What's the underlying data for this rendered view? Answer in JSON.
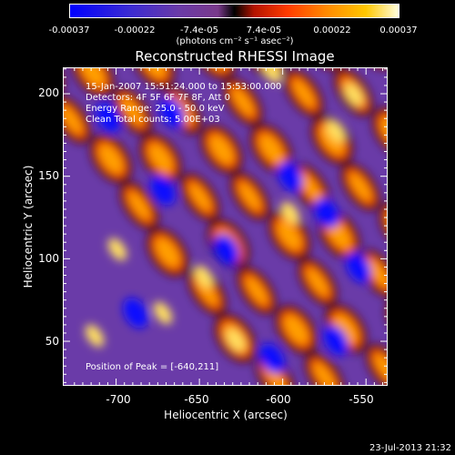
{
  "colorbar": {
    "ticks": [
      "-0.00037",
      "-0.00022",
      "-7.4e-05",
      "7.4e-05",
      "0.00022",
      "0.00037"
    ],
    "unit": "(photons cm⁻² s⁻¹ asec⁻²)",
    "min": -0.00037,
    "max": 0.00037
  },
  "title": "Reconstructed RHESSI Image",
  "info": {
    "line1": "15-Jan-2007 15:51:24.000 to 15:53:00.000",
    "line2": "Detectors: 4F 5F 6F 7F 8F, Att 0",
    "line3": "Energy Range: 25.0 - 50.0 keV",
    "line4": "Clean     Total counts: 5.00E+03"
  },
  "peak_text": "Position of Peak = [-640,211]",
  "axes": {
    "x_label": "Heliocentric X (arcsec)",
    "y_label": "Heliocentric Y (arcsec)",
    "x_ticks": [
      "-700",
      "-650",
      "-600",
      "-550"
    ],
    "y_ticks": [
      "200",
      "150",
      "100",
      "50"
    ],
    "x_range": [
      -732,
      -537
    ],
    "y_range": [
      23,
      216
    ]
  },
  "footer": "23-Jul-2013 21:32",
  "colors": {
    "background": "#000000",
    "text": "#ffffff",
    "colormap": [
      "#0000ff",
      "#3b2bd3",
      "#6a3ba8",
      "#7a3a8c",
      "#000000",
      "#ff3b00",
      "#ff8a00",
      "#ffc800",
      "#ffffe0"
    ]
  }
}
